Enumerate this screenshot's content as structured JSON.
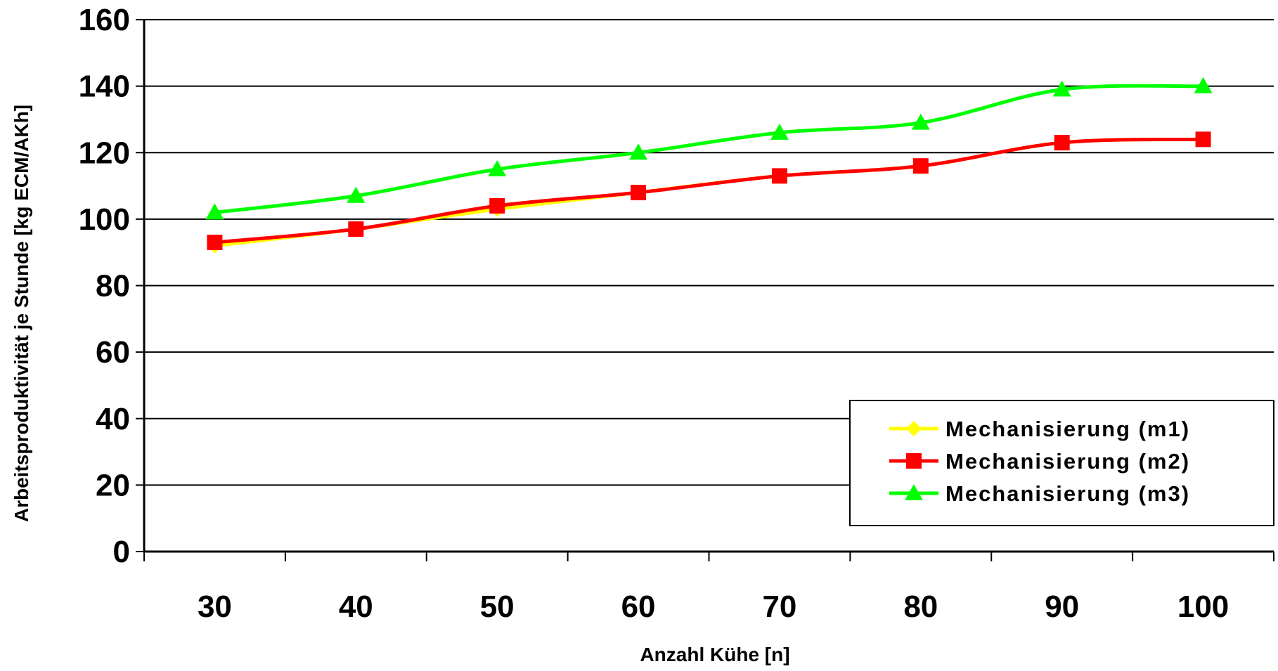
{
  "chart_data": {
    "type": "line",
    "title": "",
    "xlabel": "Anzahl Kühe [n]",
    "ylabel": "Arbeitsproduktivität je Stunde [kg ECM/AKh]",
    "categories": [
      "30",
      "40",
      "50",
      "60",
      "70",
      "80",
      "90",
      "100"
    ],
    "x": [
      30,
      40,
      50,
      60,
      70,
      80,
      90,
      100
    ],
    "ylim": [
      0,
      160
    ],
    "yticks": [
      "0",
      "20",
      "40",
      "60",
      "80",
      "100",
      "120",
      "140",
      "160"
    ],
    "grid": "horizontal",
    "legend_position": "bottom-right",
    "series": [
      {
        "name": "Mechanisierung (m1)",
        "color": "#ffff00",
        "marker": "diamond",
        "values": [
          92,
          97,
          103,
          108,
          113,
          116,
          123,
          124
        ]
      },
      {
        "name": "Mechanisierung (m2)",
        "color": "#ff0000",
        "marker": "square",
        "values": [
          93,
          97,
          104,
          108,
          113,
          116,
          123,
          124
        ]
      },
      {
        "name": "Mechanisierung (m3)",
        "color": "#00ff00",
        "marker": "triangle",
        "values": [
          102,
          107,
          115,
          120,
          126,
          129,
          139,
          140
        ]
      }
    ]
  }
}
